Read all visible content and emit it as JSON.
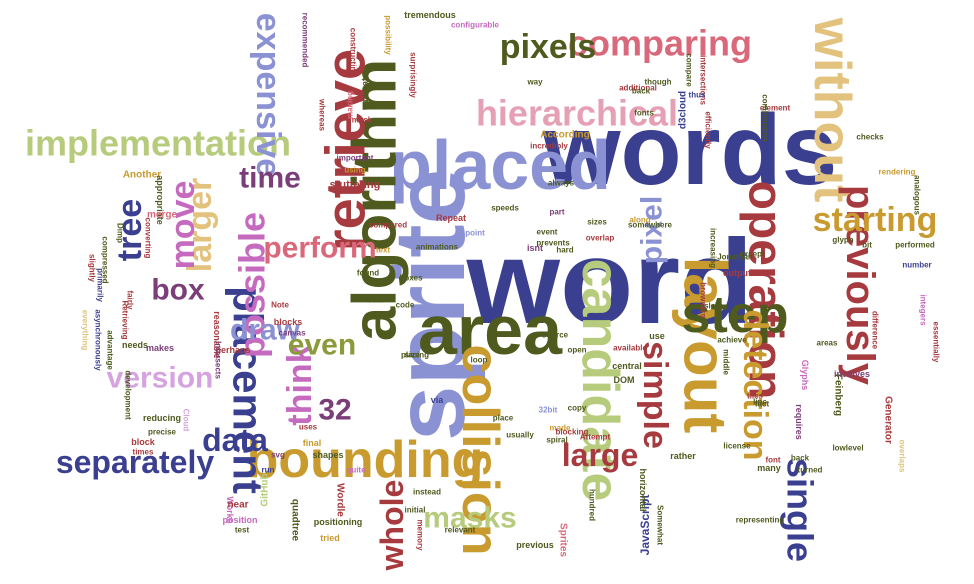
{
  "palette": {
    "navy": "#3a3f8f",
    "periwinkle": "#8b92d4",
    "olive": "#4e5a1e",
    "olive_light": "#8c9a3c",
    "sage": "#b6cc7c",
    "mustard": "#c99a2e",
    "tan": "#e2c27c",
    "crimson": "#a63a3e",
    "rose": "#d9687a",
    "pink": "#e6a0b4",
    "plum": "#7b3e78",
    "orchid": "#c66ac0",
    "lavender": "#d6a3e0"
  },
  "words": [
    {
      "text": "word",
      "color": "navy",
      "rotate": 0
    },
    {
      "text": "words",
      "color": "navy",
      "rotate": 0
    },
    {
      "text": "sprite",
      "color": "periwinkle",
      "rotate": -90
    },
    {
      "text": "placed",
      "color": "periwinkle",
      "rotate": 0
    },
    {
      "text": "algorithm",
      "color": "olive",
      "rotate": -90
    },
    {
      "text": "area",
      "color": "olive",
      "rotate": 0
    },
    {
      "text": "retrieve",
      "color": "crimson",
      "rotate": -90
    },
    {
      "text": "layout",
      "color": "mustard",
      "rotate": 90
    },
    {
      "text": "candidate",
      "color": "sage",
      "rotate": 90
    },
    {
      "text": "bounding",
      "color": "mustard",
      "rotate": 0
    },
    {
      "text": "collision",
      "color": "mustard",
      "rotate": 90
    },
    {
      "text": "without",
      "color": "tan",
      "rotate": 90
    },
    {
      "text": "operation",
      "color": "crimson",
      "rotate": 90
    },
    {
      "text": "step",
      "color": "olive",
      "rotate": 0
    },
    {
      "text": "previously",
      "color": "crimson",
      "rotate": 90
    },
    {
      "text": "placement",
      "color": "navy",
      "rotate": 90
    },
    {
      "text": "implementation",
      "color": "sage",
      "rotate": 0
    },
    {
      "text": "hierarchical",
      "color": "pink",
      "rotate": 0
    },
    {
      "text": "comparing",
      "color": "rose",
      "rotate": 0
    },
    {
      "text": "expensive",
      "color": "periwinkle",
      "rotate": 90
    },
    {
      "text": "pixels",
      "color": "olive",
      "rotate": 0
    },
    {
      "text": "separately",
      "color": "navy",
      "rotate": 0
    },
    {
      "text": "detection",
      "color": "mustard",
      "rotate": 90
    },
    {
      "text": "simple",
      "color": "crimson",
      "rotate": 90
    },
    {
      "text": "starting",
      "color": "mustard",
      "rotate": 0
    },
    {
      "text": "single",
      "color": "navy",
      "rotate": 90
    },
    {
      "text": "possible",
      "color": "orchid",
      "rotate": -90
    },
    {
      "text": "perform",
      "color": "rose",
      "rotate": 0
    },
    {
      "text": "whole",
      "color": "crimson",
      "rotate": -90
    },
    {
      "text": "large",
      "color": "crimson",
      "rotate": 0
    },
    {
      "text": "masks",
      "color": "sage",
      "rotate": 0
    },
    {
      "text": "version",
      "color": "lavender",
      "rotate": 0
    },
    {
      "text": "data",
      "color": "navy",
      "rotate": 0
    },
    {
      "text": "think",
      "color": "orchid",
      "rotate": -90
    },
    {
      "text": "larger",
      "color": "tan",
      "rotate": -90
    },
    {
      "text": "move",
      "color": "orchid",
      "rotate": -90
    },
    {
      "text": "tree",
      "color": "navy",
      "rotate": -90
    },
    {
      "text": "time",
      "color": "plum",
      "rotate": 0
    },
    {
      "text": "box",
      "color": "plum",
      "rotate": 0
    },
    {
      "text": "even",
      "color": "olive_light",
      "rotate": 0
    },
    {
      "text": "draw",
      "color": "periwinkle",
      "rotate": 0
    },
    {
      "text": "pixel",
      "color": "periwinkle",
      "rotate": -90
    },
    {
      "text": "32",
      "color": "plum",
      "rotate": 0
    },
    {
      "text": "GitHub",
      "color": "sage",
      "rotate": -90
    },
    {
      "text": "Glyphs",
      "color": "orchid",
      "rotate": 90
    },
    {
      "text": "Feinberg",
      "color": "olive",
      "rotate": 90
    },
    {
      "text": "Generator",
      "color": "crimson",
      "rotate": 90
    },
    {
      "text": "Wordle",
      "color": "crimson",
      "rotate": 90
    },
    {
      "text": "JavaScript",
      "color": "navy",
      "rotate": -90
    },
    {
      "text": "quadtree",
      "color": "olive",
      "rotate": 90
    },
    {
      "text": "Sprites",
      "color": "rose",
      "rotate": 90
    },
    {
      "text": "d3cloud",
      "color": "navy",
      "rotate": -90
    },
    {
      "text": "According",
      "color": "mustard",
      "rotate": 0
    },
    {
      "text": "recommended",
      "color": "plum",
      "rotate": 90
    },
    {
      "text": "constructing",
      "color": "crimson",
      "rotate": 90
    },
    {
      "text": "possibility",
      "color": "mustard",
      "rotate": 90
    },
    {
      "text": "tremendous",
      "color": "olive",
      "rotate": 0
    },
    {
      "text": "configurable",
      "color": "orchid",
      "rotate": 0
    },
    {
      "text": "surprisingly",
      "color": "crimson",
      "rotate": 90
    },
    {
      "text": "animate",
      "color": "olive",
      "rotate": -90
    },
    {
      "text": "making",
      "color": "rose",
      "rotate": -90
    },
    {
      "text": "whereas",
      "color": "crimson",
      "rotate": 90
    },
    {
      "text": "mask",
      "color": "crimson",
      "rotate": 0
    },
    {
      "text": "important",
      "color": "plum",
      "rotate": 0
    },
    {
      "text": "using",
      "color": "mustard",
      "rotate": 0
    },
    {
      "text": "stuttering",
      "color": "crimson",
      "rotate": 0
    },
    {
      "text": "Another",
      "color": "mustard",
      "rotate": 0
    },
    {
      "text": "appropriate",
      "color": "olive",
      "rotate": 90
    },
    {
      "text": "merge",
      "color": "rose",
      "rotate": 0
    },
    {
      "text": "converting",
      "color": "crimson",
      "rotate": 90
    },
    {
      "text": "compressed",
      "color": "olive",
      "rotate": 90
    },
    {
      "text": "primarily",
      "color": "navy",
      "rotate": 90
    },
    {
      "text": "slightly",
      "color": "crimson",
      "rotate": 90
    },
    {
      "text": "asynchronously",
      "color": "navy",
      "rotate": 90
    },
    {
      "text": "everything",
      "color": "tan",
      "rotate": 90
    },
    {
      "text": "advantage",
      "color": "olive",
      "rotate": 90
    },
    {
      "text": "Retrieving",
      "color": "crimson",
      "rotate": 90
    },
    {
      "text": "needs",
      "color": "olive",
      "rotate": 0
    },
    {
      "text": "makes",
      "color": "plum",
      "rotate": 0
    },
    {
      "text": "development",
      "color": "olive",
      "rotate": 90
    },
    {
      "text": "reducing",
      "color": "olive",
      "rotate": 0
    },
    {
      "text": "precise",
      "color": "olive",
      "rotate": 0
    },
    {
      "text": "block",
      "color": "crimson",
      "rotate": 0
    },
    {
      "text": "times",
      "color": "crimson",
      "rotate": 0
    },
    {
      "text": "Cloud",
      "color": "lavender",
      "rotate": 90
    },
    {
      "text": "Works",
      "color": "orchid",
      "rotate": 90
    },
    {
      "text": "near",
      "color": "crimson",
      "rotate": 0
    },
    {
      "text": "position",
      "color": "orchid",
      "rotate": 0
    },
    {
      "text": "test",
      "color": "olive",
      "rotate": 0
    },
    {
      "text": "run",
      "color": "navy",
      "rotate": 0
    },
    {
      "text": "svg",
      "color": "plum",
      "rotate": 0
    },
    {
      "text": "canvas",
      "color": "plum",
      "rotate": 0
    },
    {
      "text": "Note",
      "color": "crimson",
      "rotate": 0
    },
    {
      "text": "blocks",
      "color": "crimson",
      "rotate": 0
    },
    {
      "text": "fairly",
      "color": "crimson",
      "rotate": 90
    },
    {
      "text": "Dimp",
      "color": "olive",
      "rotate": 90
    },
    {
      "text": "reasonable",
      "color": "crimson",
      "rotate": 90
    },
    {
      "text": "perhaps",
      "color": "crimson",
      "rotate": 0
    },
    {
      "text": "Intersects",
      "color": "plum",
      "rotate": 90
    },
    {
      "text": "uses",
      "color": "crimson",
      "rotate": 0
    },
    {
      "text": "final",
      "color": "mustard",
      "rotate": 0
    },
    {
      "text": "shapes",
      "color": "olive",
      "rotate": 0
    },
    {
      "text": "quite",
      "color": "orchid",
      "rotate": 0
    },
    {
      "text": "tried",
      "color": "mustard",
      "rotate": 0
    },
    {
      "text": "positioning",
      "color": "olive",
      "rotate": 0
    },
    {
      "text": "initial",
      "color": "olive",
      "rotate": 0
    },
    {
      "text": "memory",
      "color": "crimson",
      "rotate": 90
    },
    {
      "text": "instead",
      "color": "olive",
      "rotate": 0
    },
    {
      "text": "relevant",
      "color": "olive",
      "rotate": 0
    },
    {
      "text": "previous",
      "color": "olive",
      "rotate": 0
    },
    {
      "text": "hundred",
      "color": "olive",
      "rotate": 90
    },
    {
      "text": "place",
      "color": "olive",
      "rotate": 0
    },
    {
      "text": "usually",
      "color": "olive",
      "rotate": 0
    },
    {
      "text": "spiral",
      "color": "olive",
      "rotate": 0
    },
    {
      "text": "32bit",
      "color": "periwinkle",
      "rotate": 0
    },
    {
      "text": "made",
      "color": "mustard",
      "rotate": 0
    },
    {
      "text": "via",
      "color": "navy",
      "rotate": 0
    },
    {
      "text": "source",
      "color": "olive",
      "rotate": 0
    },
    {
      "text": "blocking",
      "color": "crimson",
      "rotate": 0
    },
    {
      "text": "Attempt",
      "color": "crimson",
      "rotate": 0
    },
    {
      "text": "copy",
      "color": "olive",
      "rotate": 0
    },
    {
      "text": "open",
      "color": "olive",
      "rotate": 0
    },
    {
      "text": "horizontal",
      "color": "olive",
      "rotate": 90
    },
    {
      "text": "Somewhat",
      "color": "olive",
      "rotate": 90
    },
    {
      "text": "available",
      "color": "crimson",
      "rotate": 0
    },
    {
      "text": "central",
      "color": "olive",
      "rotate": 0
    },
    {
      "text": "use",
      "color": "olive",
      "rotate": 0
    },
    {
      "text": "DOM",
      "color": "olive",
      "rotate": 0
    },
    {
      "text": "rather",
      "color": "olive",
      "rotate": 0
    },
    {
      "text": "Repeat",
      "color": "crimson",
      "rotate": 0
    },
    {
      "text": "point",
      "color": "periwinkle",
      "rotate": 0
    },
    {
      "text": "isnt",
      "color": "plum",
      "rotate": 0
    },
    {
      "text": "found",
      "color": "olive",
      "rotate": 0
    },
    {
      "text": "beat",
      "color": "olive",
      "rotate": 0
    },
    {
      "text": "code",
      "color": "olive",
      "rotate": 0
    },
    {
      "text": "text",
      "color": "mustard",
      "rotate": 0
    },
    {
      "text": "size",
      "color": "olive",
      "rotate": 0
    },
    {
      "text": "boxes",
      "color": "olive",
      "rotate": 0
    },
    {
      "text": "animations",
      "color": "olive",
      "rotate": 0
    },
    {
      "text": "placing",
      "color": "olive",
      "rotate": 0
    },
    {
      "text": "event",
      "color": "olive",
      "rotate": 0
    },
    {
      "text": "prevents",
      "color": "olive",
      "rotate": 0
    },
    {
      "text": "loop",
      "color": "olive",
      "rotate": 0
    },
    {
      "text": "speeds",
      "color": "olive",
      "rotate": 0
    },
    {
      "text": "part",
      "color": "plum",
      "rotate": 0
    },
    {
      "text": "hard",
      "color": "olive",
      "rotate": 0
    },
    {
      "text": "along",
      "color": "mustard",
      "rotate": 0
    },
    {
      "text": "overlap",
      "color": "crimson",
      "rotate": 0
    },
    {
      "text": "sizes",
      "color": "olive",
      "rotate": 0
    },
    {
      "text": "somewhere",
      "color": "olive",
      "rotate": 0
    },
    {
      "text": "compared",
      "color": "crimson",
      "rotate": 0
    },
    {
      "text": "increasing",
      "color": "olive",
      "rotate": 90
    },
    {
      "text": "browsers",
      "color": "crimson",
      "rotate": 90
    },
    {
      "text": "except",
      "color": "olive",
      "rotate": 0
    },
    {
      "text": "Jonathan",
      "color": "olive",
      "rotate": 0
    },
    {
      "text": "output",
      "color": "crimson",
      "rotate": 0
    },
    {
      "text": "slow",
      "color": "olive",
      "rotate": 0
    },
    {
      "text": "achieve",
      "color": "olive",
      "rotate": 0
    },
    {
      "text": "middle",
      "color": "olive",
      "rotate": 90
    },
    {
      "text": "tiles",
      "color": "crimson",
      "rotate": 0
    },
    {
      "text": "line",
      "color": "olive",
      "rotate": 0
    },
    {
      "text": "fact",
      "color": "olive",
      "rotate": 0
    },
    {
      "text": "license",
      "color": "olive",
      "rotate": 0
    },
    {
      "text": "font",
      "color": "crimson",
      "rotate": 0
    },
    {
      "text": "many",
      "color": "olive",
      "rotate": 0
    },
    {
      "text": "requires",
      "color": "plum",
      "rotate": 90
    },
    {
      "text": "lowlevel",
      "color": "olive",
      "rotate": 0
    },
    {
      "text": "back",
      "color": "olive",
      "rotate": 0
    },
    {
      "text": "turned",
      "color": "olive",
      "rotate": 0
    },
    {
      "text": "representing",
      "color": "olive",
      "rotate": 0
    },
    {
      "text": "overlaps",
      "color": "tan",
      "rotate": 90
    },
    {
      "text": "involves",
      "color": "plum",
      "rotate": 0
    },
    {
      "text": "areas",
      "color": "olive",
      "rotate": 0
    },
    {
      "text": "difference",
      "color": "crimson",
      "rotate": 90
    },
    {
      "text": "number",
      "color": "navy",
      "rotate": 0
    },
    {
      "text": "performed",
      "color": "olive",
      "rotate": 0
    },
    {
      "text": "integers",
      "color": "orchid",
      "rotate": 90
    },
    {
      "text": "essentially",
      "color": "crimson",
      "rotate": 90
    },
    {
      "text": "rendering",
      "color": "mustard",
      "rotate": 0
    },
    {
      "text": "analogous",
      "color": "olive",
      "rotate": 90
    },
    {
      "text": "checks",
      "color": "olive",
      "rotate": 0
    },
    {
      "text": "bit",
      "color": "olive",
      "rotate": 0
    },
    {
      "text": "glyph",
      "color": "olive",
      "rotate": 0
    },
    {
      "text": "element",
      "color": "crimson",
      "rotate": 0
    },
    {
      "text": "combination",
      "color": "olive",
      "rotate": 90
    },
    {
      "text": "compare",
      "color": "olive",
      "rotate": 90
    },
    {
      "text": "intersections",
      "color": "crimson",
      "rotate": 90
    },
    {
      "text": "efficiently",
      "color": "crimson",
      "rotate": 90
    },
    {
      "text": "thus",
      "color": "navy",
      "rotate": 0
    },
    {
      "text": "though",
      "color": "olive",
      "rotate": 0
    },
    {
      "text": "additional",
      "color": "crimson",
      "rotate": 0
    },
    {
      "text": "fonts",
      "color": "olive",
      "rotate": 0
    },
    {
      "text": "back2",
      "color": "olive",
      "rotate": 0
    },
    {
      "text": "way",
      "color": "olive",
      "rotate": 0
    },
    {
      "text": "incredibly",
      "color": "crimson",
      "rotate": 0
    },
    {
      "text": "always",
      "color": "olive",
      "rotate": 0
    }
  ]
}
